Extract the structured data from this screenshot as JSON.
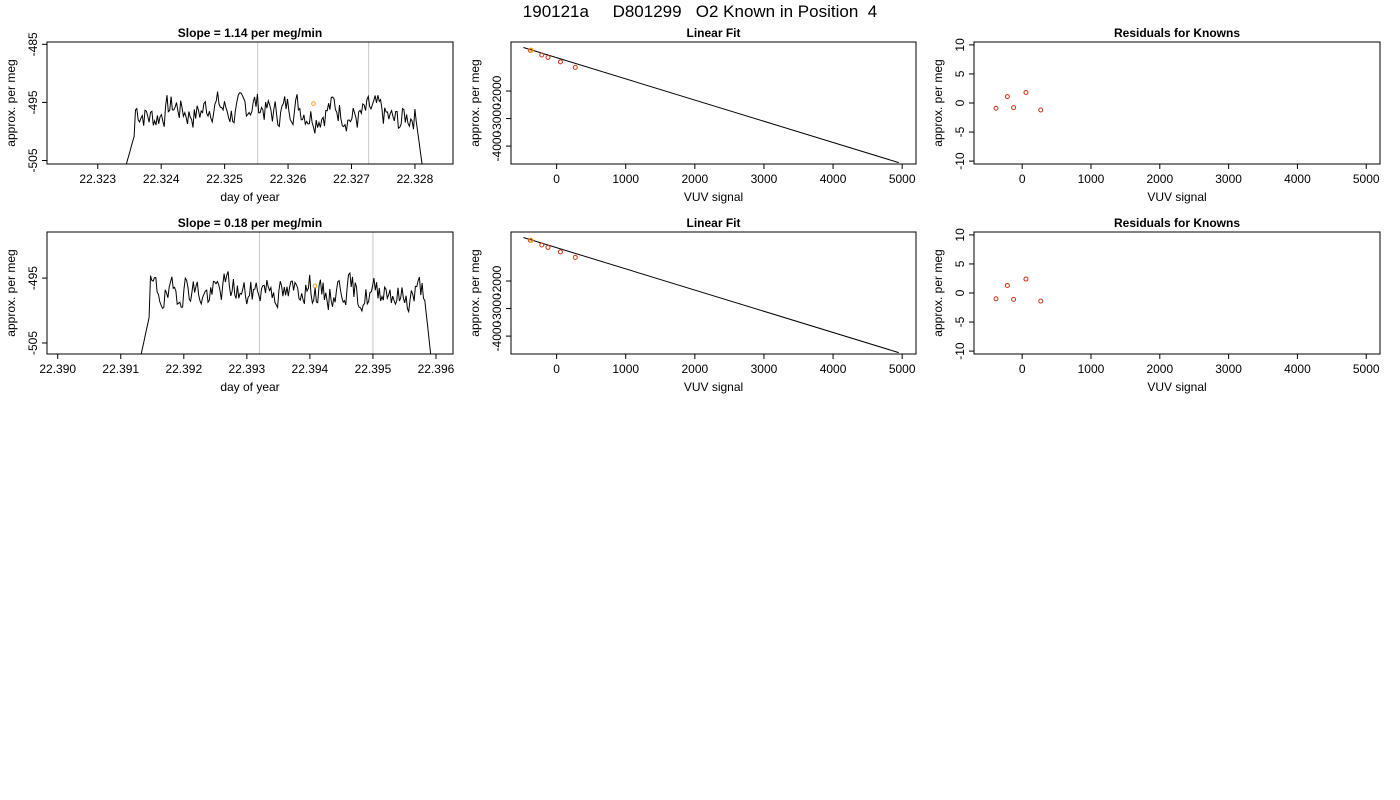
{
  "title": "190121a     D801299   O2 Known in Position  4",
  "colors": {
    "line": "#000000",
    "point": "#cc3311",
    "highlight": "#f2a020",
    "vline": "#c8c8c8"
  },
  "chart_data": [
    {
      "type": "line",
      "row": 0,
      "col": 0,
      "title": "Slope =  1.14  per meg/min",
      "xlabel": "day of year",
      "ylabel": "approx. per meg",
      "xlim": [
        22.3222,
        22.3286
      ],
      "ylim": [
        -505.6,
        -484.6
      ],
      "xticks": [
        "22.323",
        "22.324",
        "22.325",
        "22.326",
        "22.327",
        "22.328"
      ],
      "xtick_values": [
        22.323,
        22.324,
        22.325,
        22.326,
        22.327,
        22.328
      ],
      "yticks": [
        "-485",
        "-495",
        "-505"
      ],
      "ytick_values": [
        -485,
        -495,
        -505
      ],
      "vlines": [
        22.32552,
        22.32727
      ],
      "x_start": 22.3234,
      "x_end": 22.32815,
      "mean": -497.2,
      "wiggle": 2.2,
      "drift": 1.2,
      "seed": 7,
      "highlight": {
        "x": 22.3264,
        "y": -495.2
      }
    },
    {
      "type": "line",
      "row": 1,
      "col": 0,
      "title": "Slope =  0.18  per meg/min",
      "xlabel": "day of year",
      "ylabel": "approx. per meg",
      "xlim": [
        22.38983,
        22.39627
      ],
      "ylim": [
        -506.7,
        -487.9
      ],
      "xticks": [
        "22.390",
        "22.391",
        "22.392",
        "22.393",
        "22.394",
        "22.395",
        "22.396"
      ],
      "xtick_values": [
        22.39,
        22.391,
        22.392,
        22.393,
        22.394,
        22.395,
        22.396
      ],
      "yticks": [
        "-495",
        "-505"
      ],
      "ytick_values": [
        -495,
        -505
      ],
      "vlines": [
        22.3932,
        22.395
      ],
      "x_start": 22.39128,
      "x_end": 22.39595,
      "mean": -497.3,
      "wiggle": 2.0,
      "drift": 0.4,
      "seed": 19,
      "highlight": {
        "x": 22.39408,
        "y": -496.2
      }
    },
    {
      "type": "scatter",
      "row": 0,
      "col": 1,
      "title": "Linear Fit",
      "xlabel": "VUV signal",
      "ylabel": "approx. per meg",
      "xlim": [
        -660,
        5200
      ],
      "ylim": [
        -4650,
        -220
      ],
      "xticks": [
        "0",
        "1000",
        "2000",
        "3000",
        "4000",
        "5000"
      ],
      "xtick_values": [
        0,
        1000,
        2000,
        3000,
        4000,
        5000
      ],
      "yticks": [
        "-2000",
        "-3000",
        "-4000"
      ],
      "ytick_values": [
        -2000,
        -3000,
        -4000
      ],
      "x": [
        -380,
        -215,
        -125,
        55,
        270
      ],
      "y": [
        -525,
        -690,
        -780,
        -940,
        -1140
      ],
      "fit_line": {
        "x": [
          -480,
          4950
        ],
        "y": [
          -420,
          -4600
        ]
      },
      "highlight": {
        "x": -370,
        "y": -520
      }
    },
    {
      "type": "scatter",
      "row": 1,
      "col": 1,
      "title": "Linear Fit",
      "xlabel": "VUV signal",
      "ylabel": "approx. per meg",
      "xlim": [
        -660,
        5200
      ],
      "ylim": [
        -4650,
        -220
      ],
      "xticks": [
        "0",
        "1000",
        "2000",
        "3000",
        "4000",
        "5000"
      ],
      "xtick_values": [
        0,
        1000,
        2000,
        3000,
        4000,
        5000
      ],
      "yticks": [
        "-2000",
        "-3000",
        "-4000"
      ],
      "ytick_values": [
        -2000,
        -3000,
        -4000
      ],
      "x": [
        -380,
        -215,
        -125,
        55,
        270
      ],
      "y": [
        -525,
        -690,
        -780,
        -940,
        -1140
      ],
      "fit_line": {
        "x": [
          -480,
          4950
        ],
        "y": [
          -420,
          -4600
        ]
      },
      "highlight": {
        "x": -370,
        "y": -520
      }
    },
    {
      "type": "scatter",
      "row": 0,
      "col": 2,
      "title": "Residuals for Knowns",
      "xlabel": "VUV signal",
      "ylabel": "approx. per meg",
      "xlim": [
        -700,
        5200
      ],
      "ylim": [
        -10.5,
        10.5
      ],
      "xticks": [
        "0",
        "1000",
        "2000",
        "3000",
        "4000",
        "5000"
      ],
      "xtick_values": [
        0,
        1000,
        2000,
        3000,
        4000,
        5000
      ],
      "yticks": [
        "10",
        "5",
        "0",
        "-5",
        "-10"
      ],
      "ytick_values": [
        10,
        5,
        0,
        -5,
        -10
      ],
      "x": [
        -380,
        -215,
        -125,
        55,
        270
      ],
      "y": [
        -0.9,
        1.1,
        -0.8,
        1.8,
        -1.2
      ]
    },
    {
      "type": "scatter",
      "row": 1,
      "col": 2,
      "title": "Residuals for Knowns",
      "xlabel": "VUV signal",
      "ylabel": "approx. per meg",
      "xlim": [
        -700,
        5200
      ],
      "ylim": [
        -10.5,
        10.5
      ],
      "xticks": [
        "0",
        "1000",
        "2000",
        "3000",
        "4000",
        "5000"
      ],
      "xtick_values": [
        0,
        1000,
        2000,
        3000,
        4000,
        5000
      ],
      "yticks": [
        "10",
        "5",
        "0",
        "-5",
        "-10"
      ],
      "ytick_values": [
        10,
        5,
        0,
        -5,
        -10
      ],
      "x": [
        -380,
        -215,
        -125,
        55,
        270
      ],
      "y": [
        -1.0,
        1.3,
        -1.1,
        2.4,
        -1.4
      ]
    }
  ]
}
